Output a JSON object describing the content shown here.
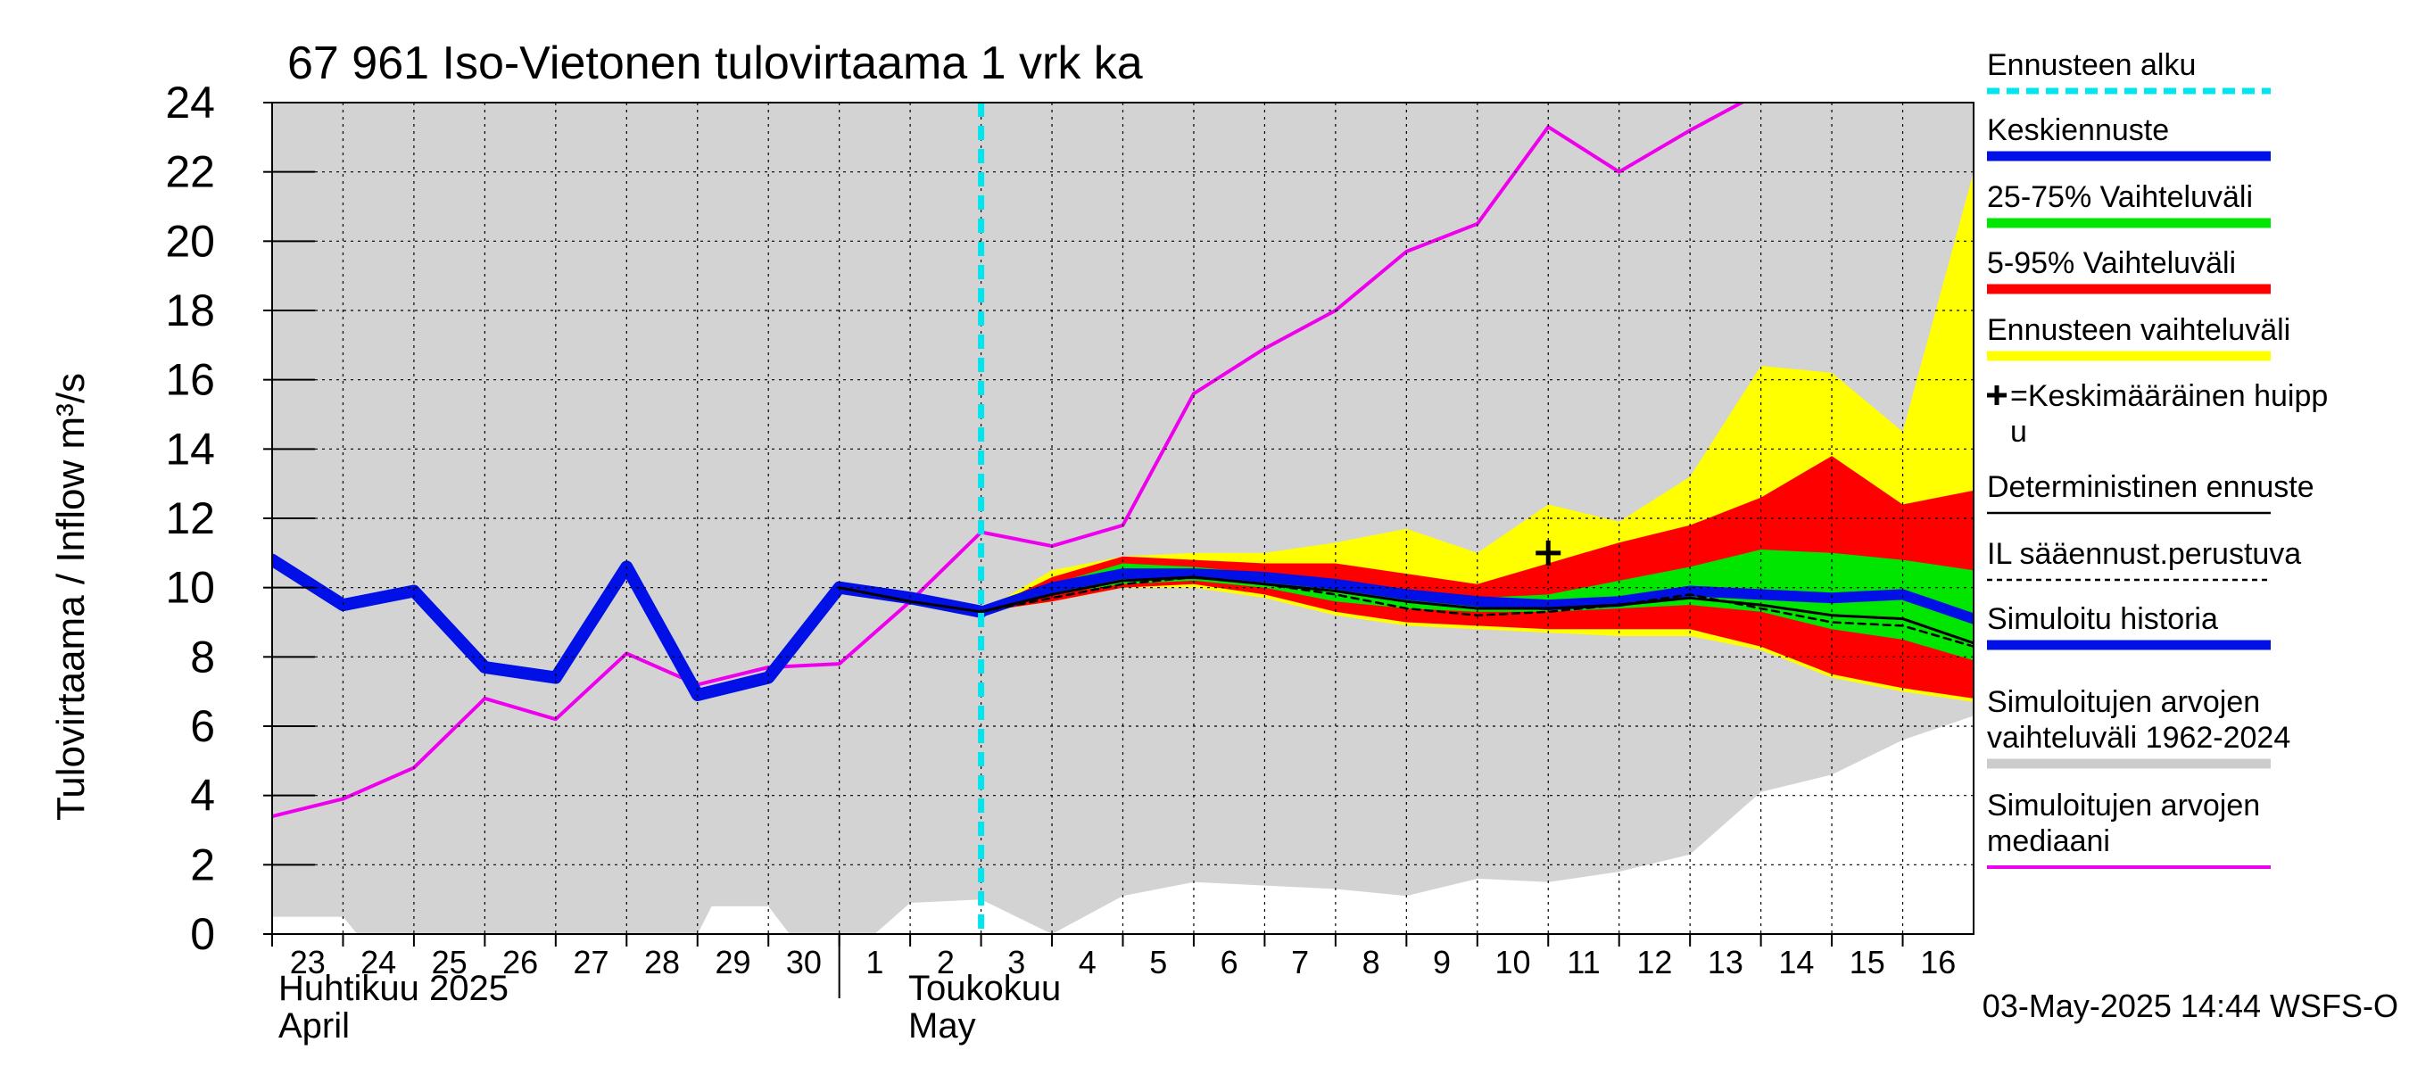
{
  "chart_data": {
    "type": "area",
    "title": "67 961 Iso-Vietonen tulovirtaama 1 vrk ka",
    "ylabel": "Tulovirtaama / Inflow    m³/s",
    "ylim": [
      0,
      24
    ],
    "yticks": [
      0,
      2,
      4,
      6,
      8,
      10,
      12,
      14,
      16,
      18,
      20,
      22,
      24
    ],
    "x_range": [
      0,
      24
    ],
    "x_day_labels": [
      "23",
      "24",
      "25",
      "26",
      "27",
      "28",
      "29",
      "30",
      "1",
      "2",
      "3",
      "4",
      "5",
      "6",
      "7",
      "8",
      "9",
      "10",
      "11",
      "12",
      "13",
      "14",
      "15",
      "16"
    ],
    "month_labels": [
      {
        "fi": "Huhtikuu  2025",
        "en": "April"
      },
      {
        "fi": "Toukokuu",
        "en": "May"
      }
    ],
    "forecast_start_x": 10,
    "footer": "03-May-2025 14:44 WSFS-O",
    "legend": [
      {
        "label": "Ennusteen alku",
        "color": "#00e5ee",
        "style": "dashed"
      },
      {
        "label": "Keskiennuste",
        "color": "#0010e6",
        "style": "thick"
      },
      {
        "label": "25-75% Vaihteluväli",
        "color": "#00e600",
        "style": "thick"
      },
      {
        "label": "5-95% Vaihteluväli",
        "color": "#ff0000",
        "style": "thick"
      },
      {
        "label": "Ennusteen vaihteluväli",
        "color": "#ffff00",
        "style": "thick"
      },
      {
        "label": "=Keskimääräinen huipp\nu",
        "color": "#000000",
        "style": "marker"
      },
      {
        "label": "Deterministinen ennuste",
        "color": "#000000",
        "style": "thin"
      },
      {
        "label": "IL sääennust.perustuva",
        "color": "#000000",
        "style": "dotted"
      },
      {
        "label": "Simuloitu historia",
        "color": "#0010e6",
        "style": "thick"
      },
      {
        "label": "Simuloitujen arvojen\nvaihteluväli 1962-2024",
        "color": "#cccccc",
        "style": "thick"
      },
      {
        "label": "Simuloitujen arvojen\nmediaani",
        "color": "#ee00ee",
        "style": "medium"
      }
    ],
    "colors": {
      "history_range": "#d3d3d3",
      "forecast_range": "#ffff00",
      "p5_95": "#ff0000",
      "p25_75": "#00e600",
      "mean_forecast": "#0010e6",
      "simulated_history": "#0010e6",
      "median": "#ee00ee",
      "forecast_start": "#00e5ee"
    },
    "series": {
      "hist_range_upper": {
        "x": [
          0,
          24
        ],
        "y": [
          24,
          24
        ]
      },
      "hist_range_lower": {
        "x": [
          0,
          1,
          1.2,
          2,
          3,
          4,
          5,
          6,
          6.2,
          7,
          7.3,
          8,
          8.5,
          9,
          10,
          11,
          12,
          13,
          14,
          15,
          16,
          17,
          18,
          19,
          20,
          21,
          22,
          23,
          24
        ],
        "y": [
          0.5,
          0.5,
          0,
          0,
          0,
          0,
          0,
          0,
          0.8,
          0.8,
          0,
          0,
          0,
          0.9,
          1.0,
          -0.2,
          1.1,
          1.5,
          1.4,
          1.3,
          1.1,
          1.6,
          1.5,
          1.8,
          2.3,
          4.1,
          4.6,
          5.6,
          6.3
        ]
      },
      "forecast_range_upper": {
        "x": [
          10,
          11,
          12,
          13,
          14,
          15,
          16,
          17,
          18,
          19,
          20,
          21,
          22,
          23,
          24
        ],
        "y": [
          9.3,
          10.5,
          10.9,
          11.0,
          11.0,
          11.3,
          11.7,
          11.0,
          12.4,
          11.9,
          13.2,
          16.4,
          16.2,
          14.5,
          22.0
        ]
      },
      "forecast_range_lower": {
        "x": [
          10,
          11,
          12,
          13,
          14,
          15,
          16,
          17,
          18,
          19,
          20,
          21,
          22,
          23,
          24
        ],
        "y": [
          9.3,
          9.6,
          10.0,
          10.0,
          9.7,
          9.2,
          8.9,
          8.8,
          8.7,
          8.6,
          8.6,
          8.2,
          7.4,
          7.0,
          6.7
        ]
      },
      "p5_95_upper": {
        "x": [
          10,
          11,
          12,
          13,
          14,
          15,
          16,
          17,
          18,
          19,
          20,
          21,
          22,
          23,
          24
        ],
        "y": [
          9.3,
          10.3,
          10.9,
          10.8,
          10.7,
          10.7,
          10.4,
          10.1,
          10.7,
          11.3,
          11.8,
          12.6,
          13.8,
          12.4,
          12.8
        ]
      },
      "p5_95_lower": {
        "x": [
          10,
          11,
          12,
          13,
          14,
          15,
          16,
          17,
          18,
          19,
          20,
          21,
          22,
          23,
          24
        ],
        "y": [
          9.3,
          9.6,
          10.0,
          10.1,
          9.8,
          9.3,
          9.0,
          8.9,
          8.8,
          8.8,
          8.8,
          8.3,
          7.5,
          7.1,
          6.8
        ]
      },
      "p25_75_upper": {
        "x": [
          10,
          11,
          12,
          13,
          14,
          15,
          16,
          17,
          18,
          19,
          20,
          21,
          22,
          23,
          24
        ],
        "y": [
          9.3,
          10.1,
          10.7,
          10.6,
          10.4,
          10.2,
          9.9,
          9.7,
          9.8,
          10.2,
          10.6,
          11.1,
          11.0,
          10.8,
          10.5
        ]
      },
      "p25_75_lower": {
        "x": [
          10,
          11,
          12,
          13,
          14,
          15,
          16,
          17,
          18,
          19,
          20,
          21,
          22,
          23,
          24
        ],
        "y": [
          9.3,
          9.8,
          10.1,
          10.2,
          10.0,
          9.6,
          9.4,
          9.3,
          9.3,
          9.4,
          9.5,
          9.3,
          8.8,
          8.5,
          7.9
        ]
      },
      "mean_forecast": {
        "x": [
          10,
          11,
          12,
          13,
          14,
          15,
          16,
          17,
          18,
          19,
          20,
          21,
          22,
          23,
          24
        ],
        "y": [
          9.3,
          10.0,
          10.4,
          10.4,
          10.3,
          10.1,
          9.8,
          9.6,
          9.5,
          9.6,
          9.9,
          9.8,
          9.7,
          9.8,
          9.1
        ]
      },
      "deterministic": {
        "x": [
          8,
          9,
          10,
          11,
          12,
          13,
          14,
          15,
          16,
          17,
          18,
          19,
          20,
          21,
          22,
          23,
          24
        ],
        "y": [
          10.0,
          9.6,
          9.3,
          9.8,
          10.2,
          10.3,
          10.1,
          9.9,
          9.6,
          9.4,
          9.4,
          9.5,
          9.7,
          9.5,
          9.2,
          9.1,
          8.4
        ]
      },
      "il_forecast": {
        "x": [
          10,
          11,
          12,
          13,
          14,
          15,
          16,
          17,
          18,
          19,
          20,
          21,
          22,
          23,
          24
        ],
        "y": [
          9.3,
          9.7,
          10.1,
          10.3,
          10.1,
          9.8,
          9.4,
          9.2,
          9.3,
          9.5,
          9.8,
          9.4,
          9.0,
          8.9,
          8.3
        ]
      },
      "simulated_history": {
        "x": [
          0,
          1,
          2,
          3,
          4,
          5,
          6,
          7,
          8,
          9,
          10
        ],
        "y": [
          10.8,
          9.5,
          9.9,
          7.7,
          7.4,
          10.6,
          6.9,
          7.4,
          10.0,
          9.7,
          9.3
        ]
      },
      "median": {
        "x": [
          0,
          1,
          2,
          3,
          4,
          5,
          6,
          7,
          8,
          9,
          10,
          11,
          12,
          13,
          14,
          15,
          16,
          17,
          18,
          19,
          20,
          21
        ],
        "y": [
          3.4,
          3.9,
          4.8,
          6.8,
          6.2,
          8.1,
          7.2,
          7.7,
          7.8,
          9.6,
          11.6,
          11.2,
          11.8,
          15.6,
          16.9,
          18.0,
          19.7,
          20.5,
          23.3,
          22.0,
          23.2,
          24.3
        ]
      }
    },
    "peak_marker": {
      "x": 18,
      "y": 11.0
    }
  }
}
